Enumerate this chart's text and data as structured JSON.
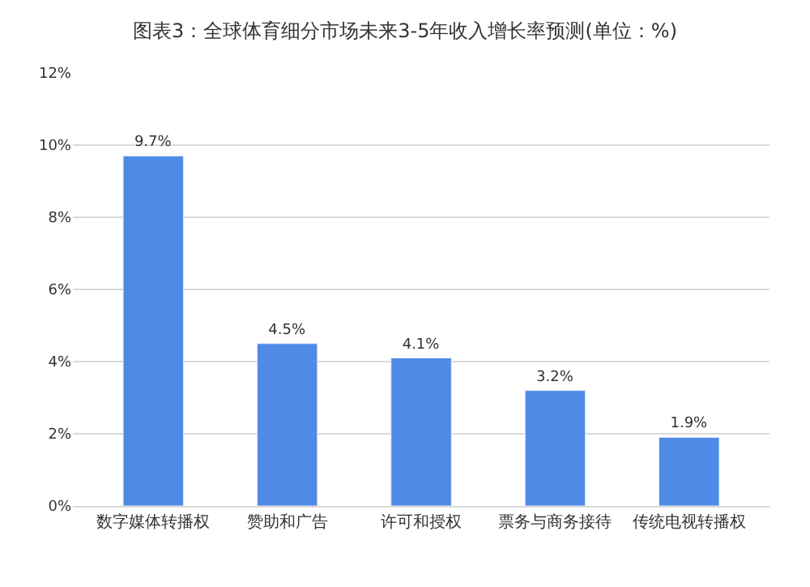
{
  "chart_data": {
    "type": "bar",
    "title": "图表3：全球体育细分市场未来3-5年收入增长率预测(单位：%)",
    "categories": [
      "数字媒体转播权",
      "赞助和广告",
      "许可和授权",
      "票务与商务接待",
      "传统电视转播权"
    ],
    "values": [
      9.7,
      4.5,
      4.1,
      3.2,
      1.9
    ],
    "value_labels": [
      "9.7%",
      "4.5%",
      "4.1%",
      "3.2%",
      "1.9%"
    ],
    "color": "#4f8ae6",
    "ylim": [
      0,
      12
    ],
    "yticks": [
      {
        "value": 0,
        "label": "0%"
      },
      {
        "value": 2,
        "label": "2%"
      },
      {
        "value": 4,
        "label": "4%"
      },
      {
        "value": 6,
        "label": "6%"
      },
      {
        "value": 8,
        "label": "8%"
      },
      {
        "value": 10,
        "label": "10%"
      },
      {
        "value": 12,
        "label": "12%"
      }
    ],
    "grid": "y",
    "legend": false
  }
}
